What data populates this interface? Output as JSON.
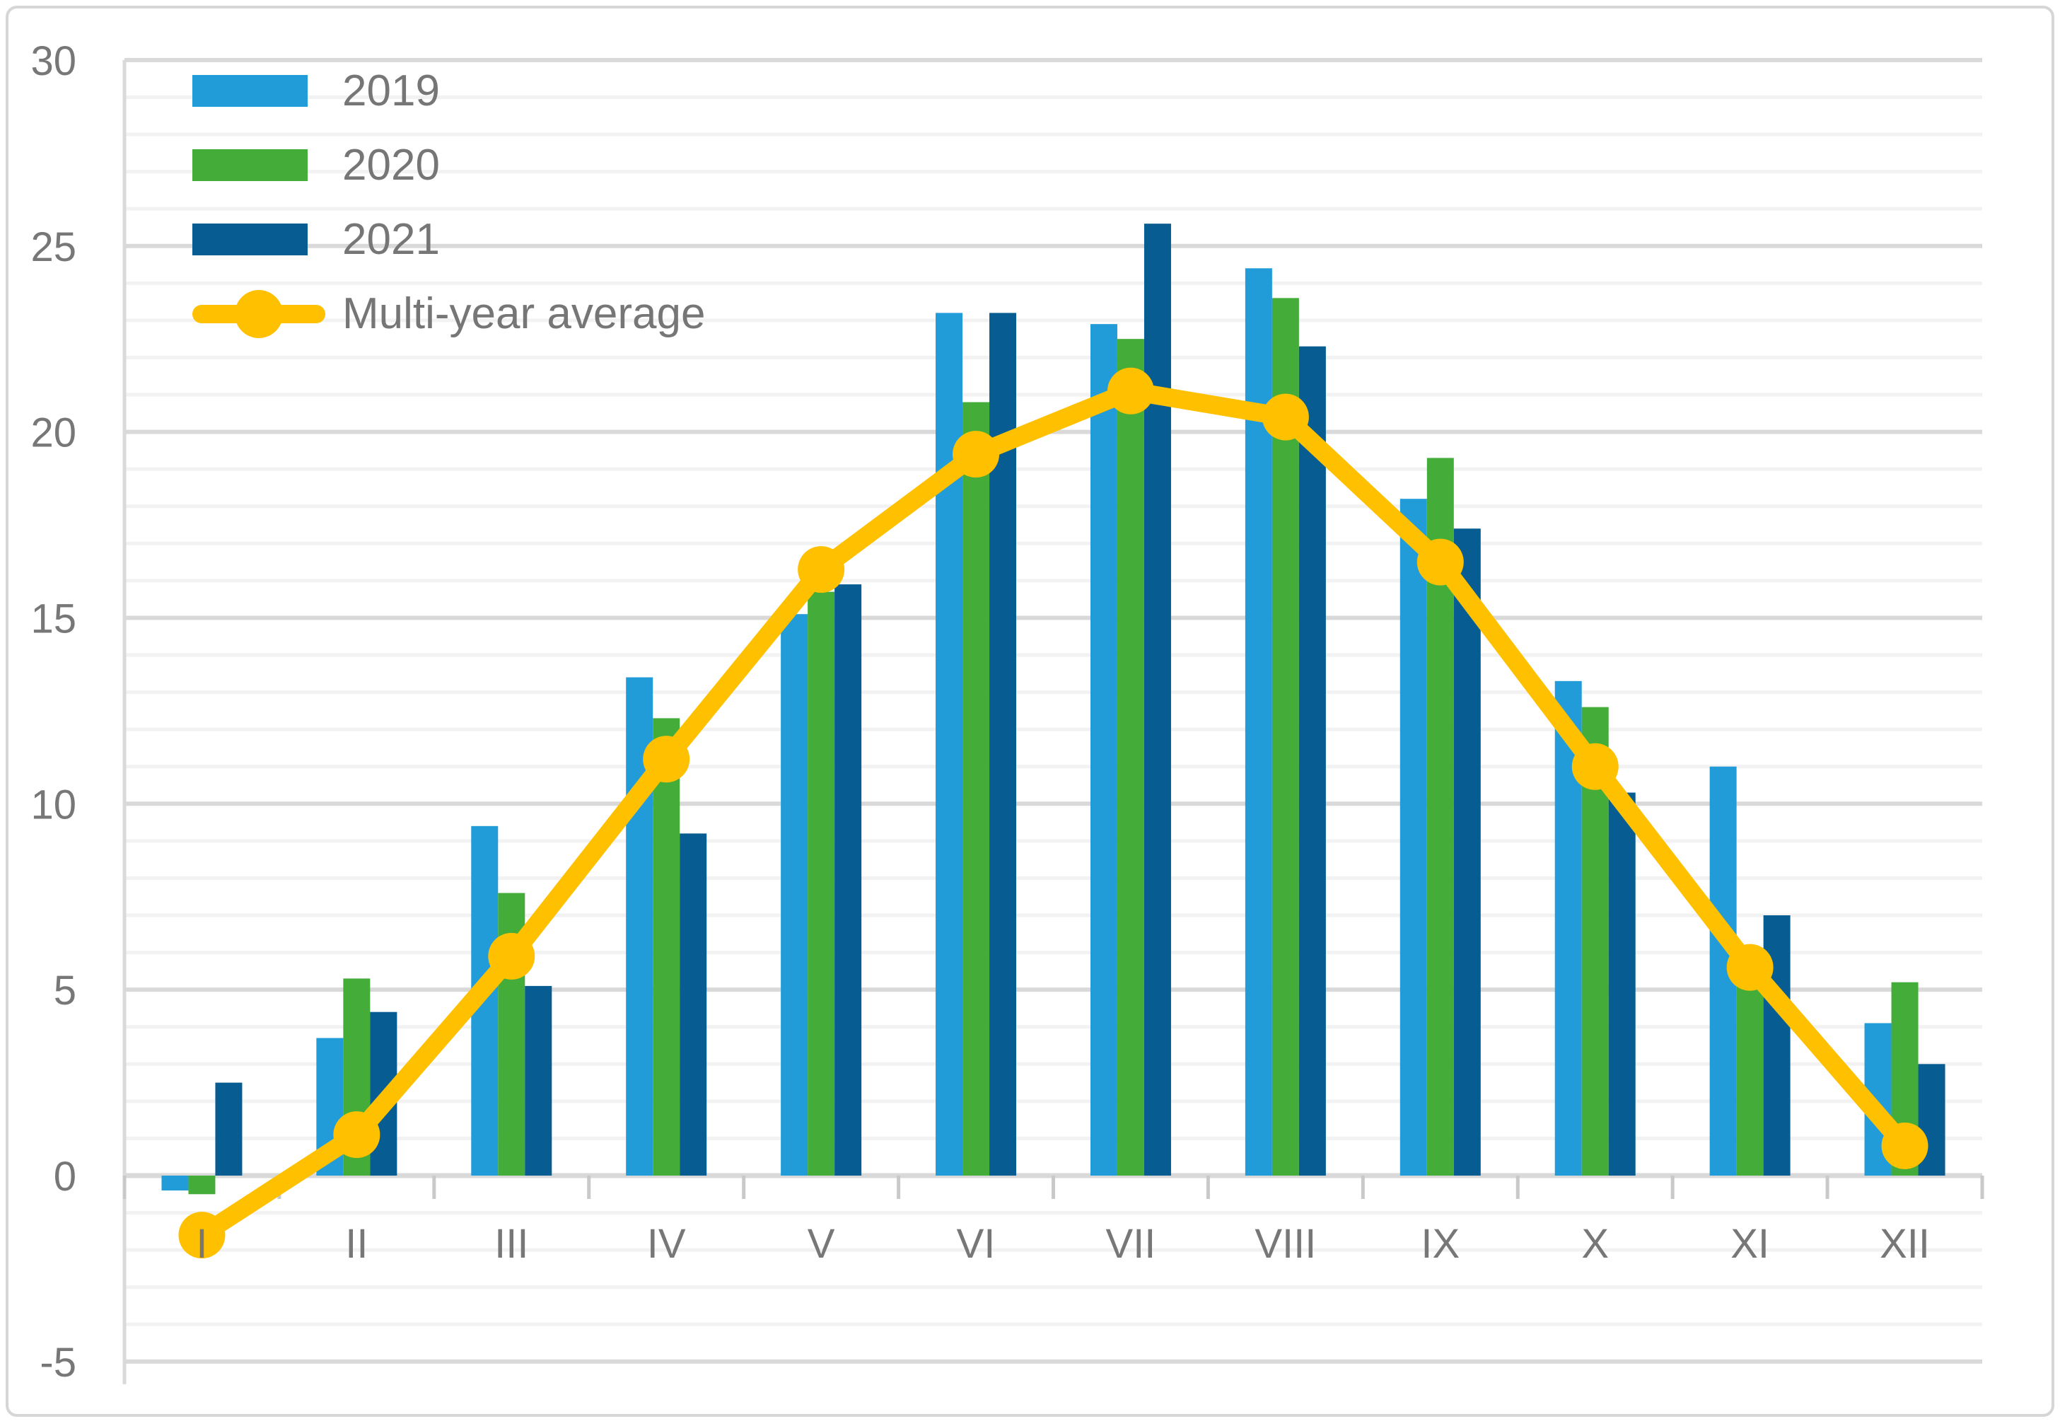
{
  "chart_data": {
    "type": "bar",
    "title": "",
    "xlabel": "",
    "ylabel": "",
    "categories": [
      "I",
      "II",
      "III",
      "IV",
      "V",
      "VI",
      "VII",
      "VIII",
      "IX",
      "X",
      "XI",
      "XII"
    ],
    "series": [
      {
        "name": "2019",
        "kind": "bar",
        "color": "#229CD9",
        "values": [
          -0.4,
          3.7,
          9.4,
          13.4,
          15.1,
          23.2,
          22.9,
          24.4,
          18.2,
          13.3,
          11.0,
          4.1
        ]
      },
      {
        "name": "2020",
        "kind": "bar",
        "color": "#44AD3A",
        "values": [
          -0.5,
          5.3,
          7.6,
          12.3,
          15.7,
          20.8,
          22.5,
          23.6,
          19.3,
          12.6,
          5.1,
          5.2
        ]
      },
      {
        "name": "2021",
        "kind": "bar",
        "color": "#075D92",
        "values": [
          2.5,
          4.4,
          5.1,
          9.2,
          15.9,
          23.2,
          25.6,
          22.3,
          17.4,
          10.3,
          7.0,
          3.0
        ]
      },
      {
        "name": "Multi-year average",
        "kind": "line",
        "color": "#FFC000",
        "values": [
          -1.6,
          1.1,
          5.9,
          11.2,
          16.3,
          19.4,
          21.1,
          20.4,
          16.5,
          11.0,
          5.6,
          0.8
        ]
      }
    ],
    "ylim": [
      -5,
      30
    ],
    "y_major_ticks": [
      -5,
      0,
      5,
      10,
      15,
      20,
      25,
      30
    ],
    "y_minor_step": 1,
    "grid": {
      "show": true,
      "minor_color": "#F2F2F2",
      "major_color": "#D9D9D9",
      "tick_color": "#C9C9C9"
    },
    "axis_text_color": "#777777",
    "legend_position": "top-left"
  }
}
